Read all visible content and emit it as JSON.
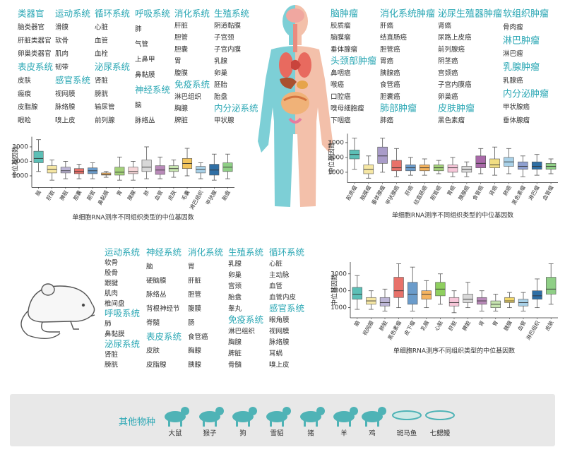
{
  "human": {
    "columns": [
      [
        {
          "title": "类器官",
          "items": [
            "脑类器官",
            "肝脏类器官",
            "卵巢类器官"
          ]
        },
        {
          "title": "表皮系统",
          "items": [
            "皮肤",
            "瘢痕",
            "皮脂腺",
            "眼睑"
          ]
        }
      ],
      [
        {
          "title": "运动系统",
          "items": [
            "滑膜",
            "软骨",
            "肌肉",
            "韧带"
          ]
        },
        {
          "title": "感官系统",
          "items": [
            "视网膜",
            "脉络膜",
            "嗅上皮"
          ]
        }
      ],
      [
        {
          "title": "循环系统",
          "items": [
            "心脏",
            "血管",
            "血栓"
          ]
        },
        {
          "title": "泌尿系统",
          "items": [
            "肾脏",
            "膀胱",
            "输尿管",
            "前列腺"
          ]
        }
      ],
      [
        {
          "title": "呼吸系统",
          "items": [
            "肺",
            "气管",
            "上鼻甲",
            "鼻黏膜"
          ]
        },
        {
          "title": "神经系统",
          "items": [
            "脑",
            "脉络丛"
          ]
        }
      ],
      [
        {
          "title": "消化系统",
          "items": [
            "肝脏",
            "胆管",
            "胆囊",
            "胃",
            "腹膜"
          ]
        },
        {
          "title": "免疫系统",
          "items": [
            "淋巴组织",
            "胸腺",
            "脾脏"
          ]
        }
      ],
      [
        {
          "title": "生殖系统",
          "items": [
            "阴道黏膜",
            "子宫颈",
            "子宫内膜",
            "乳腺",
            "卵巢",
            "胚胎",
            "胎盘"
          ]
        },
        {
          "title": "内分泌系统",
          "items": [
            "甲状腺"
          ]
        }
      ]
    ]
  },
  "tumors": {
    "columns": [
      [
        {
          "title": "脑肿瘤",
          "items": [
            "胶质瘤",
            "脑膜瘤",
            "垂体腺瘤"
          ]
        },
        {
          "title": "头颈部肿瘤",
          "items": [
            "鼻咽癌",
            "喉癌",
            "口腔癌",
            "嗅母细胞瘤",
            "下咽癌"
          ]
        }
      ],
      [
        {
          "title": "消化系统肿瘤",
          "items": [
            "肝癌",
            "结直肠癌",
            "胆管癌",
            "胃癌",
            "胰腺癌",
            "食管癌",
            "胆囊癌"
          ]
        },
        {
          "title": "肺部肿瘤",
          "items": [
            "肺癌"
          ]
        }
      ],
      [
        {
          "title": "泌尿生殖器肿瘤",
          "items": [
            "肾癌",
            "尿路上皮癌",
            "前列腺癌",
            "阴茎癌",
            "宫颈癌",
            "子宫内膜癌",
            "卵巢癌"
          ]
        },
        {
          "title": "皮肤肿瘤",
          "items": [
            "黑色素瘤"
          ]
        }
      ],
      [
        {
          "title": "软组织肿瘤",
          "items": [
            "骨肉瘤"
          ]
        },
        {
          "title": "淋巴肿瘤",
          "items": [
            "淋巴瘤"
          ]
        },
        {
          "title": "乳腺肿瘤",
          "items": [
            "乳腺癌"
          ]
        },
        {
          "title": "内分泌肿瘤",
          "items": [
            "甲状腺癌",
            "垂体腺瘤"
          ]
        }
      ]
    ]
  },
  "mouse": {
    "columns": [
      [
        {
          "title": "运动系统",
          "items": [
            "软骨",
            "股骨",
            "跟腱",
            "肌肉",
            "椎间盘"
          ]
        },
        {
          "title": "呼吸系统",
          "items": [
            "肺",
            "鼻黏膜"
          ]
        },
        {
          "title": "泌尿系统",
          "items": [
            "肾脏",
            "膀胱"
          ]
        }
      ],
      [
        {
          "title": "神经系统",
          "items": [
            "脑",
            "硬脑膜",
            "脉络丛",
            "背根神经节",
            "脊髓"
          ]
        },
        {
          "title": "表皮系统",
          "items": [
            "皮肤",
            "皮脂腺"
          ]
        }
      ],
      [
        {
          "title": "消化系统",
          "items": [
            "胃",
            "肝脏",
            "胆管",
            "腹膜",
            "肠",
            "食管癌",
            "胸腺",
            "胰腺"
          ]
        }
      ],
      [
        {
          "title": "生殖系统",
          "items": [
            "乳腺",
            "卵巢",
            "宫颈",
            "胎盘",
            "睾丸"
          ]
        },
        {
          "title": "免疫系统",
          "items": [
            "淋巴组织",
            "胸腺",
            "脾脏",
            "骨髓"
          ]
        }
      ],
      [
        {
          "title": "循环系统",
          "items": [
            "心脏",
            "主动脉",
            "血管",
            "血管内皮"
          ]
        },
        {
          "title": "感官系统",
          "items": [
            "眼角膜",
            "视网膜",
            "脉络膜",
            "耳蜗",
            "嗅上皮"
          ]
        }
      ]
    ]
  },
  "other_species": {
    "title": "其他物种",
    "items": [
      "大鼠",
      "猴子",
      "狗",
      "雪貂",
      "猪",
      "羊",
      "鸡",
      "斑马鱼",
      "七鳃鳗"
    ]
  },
  "chart_data": [
    {
      "type": "box",
      "ylabel": "中位基因数",
      "xlabel": "单细胞RNA测序不同组织类型的中位基因数",
      "ylim": [
        200,
        3700
      ],
      "yticks": [
        1000,
        2000,
        3000
      ],
      "categories": [
        "脑",
        "肝脏",
        "脾脏",
        "胆囊",
        "胆管",
        "鼻黏膜",
        "胃",
        "胰腺",
        "肺",
        "血管",
        "皮肤",
        "毛囊",
        "淋巴组织",
        "甲状腺",
        "胎盘"
      ],
      "colors": [
        "#5cbfb6",
        "#f6e7a4",
        "#bdb6d6",
        "#e8716a",
        "#6b9ccb",
        "#f4b35f",
        "#a4d17a",
        "#f6d6d8",
        "#d8d8d8",
        "#b98ab9",
        "#c7e5b0",
        "#f2c45c",
        "#a9d1e8",
        "#2f6fa5",
        "#8fcf86"
      ],
      "boxes": [
        {
          "min": 1300,
          "q1": 1900,
          "median": 2200,
          "q3": 2700,
          "max": 3500
        },
        {
          "min": 700,
          "q1": 1200,
          "median": 1450,
          "q3": 1700,
          "max": 2100
        },
        {
          "min": 800,
          "q1": 1200,
          "median": 1350,
          "q3": 1600,
          "max": 2000
        },
        {
          "min": 800,
          "q1": 1150,
          "median": 1300,
          "q3": 1500,
          "max": 1800
        },
        {
          "min": 800,
          "q1": 1150,
          "median": 1350,
          "q3": 1550,
          "max": 1900
        },
        {
          "min": 900,
          "q1": 1050,
          "median": 1100,
          "q3": 1200,
          "max": 1300
        },
        {
          "min": 700,
          "q1": 1050,
          "median": 1250,
          "q3": 1600,
          "max": 2300
        },
        {
          "min": 700,
          "q1": 1150,
          "median": 1300,
          "q3": 1600,
          "max": 2000
        },
        {
          "min": 800,
          "q1": 1300,
          "median": 1600,
          "q3": 2100,
          "max": 3000
        },
        {
          "min": 800,
          "q1": 1100,
          "median": 1400,
          "q3": 1700,
          "max": 2300
        },
        {
          "min": 900,
          "q1": 1300,
          "median": 1500,
          "q3": 1700,
          "max": 2100
        },
        {
          "min": 1000,
          "q1": 1500,
          "median": 1850,
          "q3": 2200,
          "max": 2900
        },
        {
          "min": 800,
          "q1": 1200,
          "median": 1450,
          "q3": 1650,
          "max": 1900
        },
        {
          "min": 700,
          "q1": 1050,
          "median": 1400,
          "q3": 1800,
          "max": 2500
        },
        {
          "min": 800,
          "q1": 1300,
          "median": 1600,
          "q3": 1900,
          "max": 2500
        }
      ]
    },
    {
      "type": "box",
      "ylabel": "中位基因数",
      "xlabel": "单细胞RNA测序不同组织类型的中位基因数",
      "ylim": [
        300,
        3600
      ],
      "yticks": [
        1000,
        2000,
        3000
      ],
      "categories": [
        "胶质瘤",
        "脑膜瘤",
        "垂体腺瘤",
        "甲状腺癌",
        "肝癌",
        "结直肠癌",
        "胆管癌",
        "胃癌",
        "胰腺癌",
        "食管癌",
        "肾癌",
        "肺癌",
        "黑色素瘤",
        "淋巴瘤",
        "血管瘤"
      ],
      "colors": [
        "#5cbfb6",
        "#f6e7a4",
        "#a99cc9",
        "#e8716a",
        "#6b9ccb",
        "#f4b35f",
        "#a4d17a",
        "#f6c6d8",
        "#d8d8d8",
        "#a969a9",
        "#f2de82",
        "#a9d1e8",
        "#8e9fd0",
        "#2f6fa5",
        "#8fcf86"
      ],
      "boxes": [
        {
          "min": 1200,
          "q1": 1900,
          "median": 2200,
          "q3": 2500,
          "max": 3300
        },
        {
          "min": 600,
          "q1": 900,
          "median": 1200,
          "q3": 1500,
          "max": 2100
        },
        {
          "min": 1000,
          "q1": 1600,
          "median": 2100,
          "q3": 2700,
          "max": 3300
        },
        {
          "min": 700,
          "q1": 1100,
          "median": 1300,
          "q3": 1800,
          "max": 2600
        },
        {
          "min": 800,
          "q1": 1100,
          "median": 1300,
          "q3": 1500,
          "max": 2000
        },
        {
          "min": 800,
          "q1": 1100,
          "median": 1300,
          "q3": 1500,
          "max": 1900
        },
        {
          "min": 900,
          "q1": 1100,
          "median": 1300,
          "q3": 1500,
          "max": 1800
        },
        {
          "min": 700,
          "q1": 1000,
          "median": 1300,
          "q3": 1500,
          "max": 2000
        },
        {
          "min": 700,
          "q1": 1000,
          "median": 1200,
          "q3": 1400,
          "max": 1700
        },
        {
          "min": 900,
          "q1": 1300,
          "median": 1600,
          "q3": 2100,
          "max": 2600
        },
        {
          "min": 800,
          "q1": 1300,
          "median": 1500,
          "q3": 1900,
          "max": 2700
        },
        {
          "min": 900,
          "q1": 1400,
          "median": 1700,
          "q3": 2000,
          "max": 2600
        },
        {
          "min": 700,
          "q1": 1200,
          "median": 1400,
          "q3": 1700,
          "max": 2100
        },
        {
          "min": 800,
          "q1": 1200,
          "median": 1400,
          "q3": 1700,
          "max": 2200
        },
        {
          "min": 900,
          "q1": 1200,
          "median": 1400,
          "q3": 1600,
          "max": 1900
        }
      ]
    },
    {
      "type": "box",
      "ylabel": "中位基因数",
      "xlabel": "单细胞RNA测序不同组织类型的中位基因数",
      "ylim": [
        400,
        3700
      ],
      "yticks": [
        1000,
        2000,
        3000
      ],
      "categories": [
        "脑",
        "视网膜",
        "肺脏",
        "黑色素瘤",
        "皮下瘤",
        "乳腺",
        "心脏",
        "肝脏",
        "脾脏",
        "肾",
        "胃",
        "胰腺",
        "血管",
        "淋巴组织",
        "皮肤"
      ],
      "colors": [
        "#5cbfb6",
        "#f6e7a4",
        "#bdb6d6",
        "#e8716a",
        "#6b9ccb",
        "#f4b35f",
        "#8fcf5f",
        "#f6c6d8",
        "#d8d8d8",
        "#b98ab9",
        "#c7e5b0",
        "#f2d86a",
        "#a9d1e8",
        "#2f6fa5",
        "#8fcf86"
      ],
      "boxes": [
        {
          "min": 900,
          "q1": 1500,
          "median": 1800,
          "q3": 2200,
          "max": 2900
        },
        {
          "min": 900,
          "q1": 1200,
          "median": 1400,
          "q3": 1600,
          "max": 2000
        },
        {
          "min": 800,
          "q1": 1100,
          "median": 1300,
          "q3": 1600,
          "max": 2100
        },
        {
          "min": 1000,
          "q1": 1600,
          "median": 2000,
          "q3": 2800,
          "max": 3600
        },
        {
          "min": 800,
          "q1": 1200,
          "median": 1800,
          "q3": 2500,
          "max": 3400
        },
        {
          "min": 1000,
          "q1": 1500,
          "median": 1800,
          "q3": 2000,
          "max": 2600
        },
        {
          "min": 1200,
          "q1": 1700,
          "median": 2100,
          "q3": 2500,
          "max": 3000
        },
        {
          "min": 700,
          "q1": 1100,
          "median": 1300,
          "q3": 1600,
          "max": 2000
        },
        {
          "min": 1000,
          "q1": 1300,
          "median": 1500,
          "q3": 1800,
          "max": 2500
        },
        {
          "min": 800,
          "q1": 1200,
          "median": 1400,
          "q3": 1600,
          "max": 2000
        },
        {
          "min": 800,
          "q1": 1000,
          "median": 1200,
          "q3": 1400,
          "max": 1800
        },
        {
          "min": 1000,
          "q1": 1300,
          "median": 1400,
          "q3": 1600,
          "max": 1900
        },
        {
          "min": 800,
          "q1": 1100,
          "median": 1300,
          "q3": 1500,
          "max": 1900
        },
        {
          "min": 1000,
          "q1": 1500,
          "median": 1700,
          "q3": 2000,
          "max": 2700
        },
        {
          "min": 1200,
          "q1": 1800,
          "median": 2100,
          "q3": 2800,
          "max": 3600
        }
      ]
    }
  ]
}
